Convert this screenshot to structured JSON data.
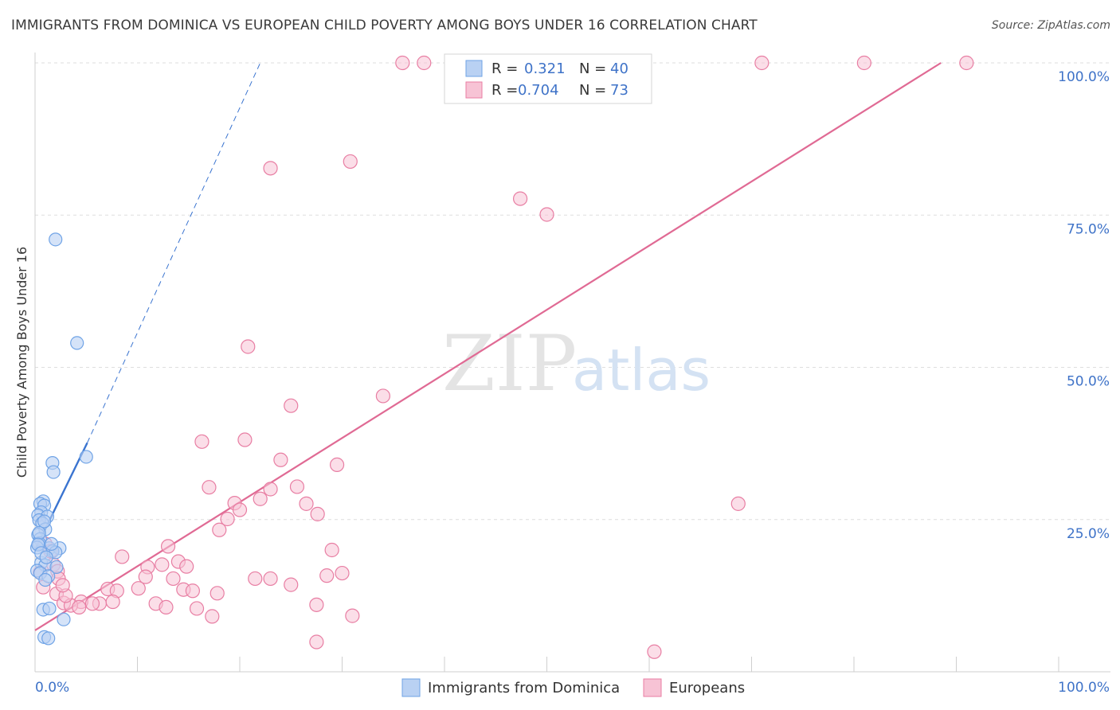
{
  "title": "IMMIGRANTS FROM DOMINICA VS EUROPEAN CHILD POVERTY AMONG BOYS UNDER 16 CORRELATION CHART",
  "source": "Source: ZipAtlas.com",
  "watermark": {
    "zip": "ZIP",
    "atlas": "atlas"
  },
  "colors": {
    "blue": "#6fa3e6",
    "blue_fill": "#b9d1f3",
    "blue_line": "#3a74d0",
    "pink": "#e87ea3",
    "pink_fill": "#f7c3d5",
    "pink_line": "#e06a94",
    "axis_label": "#3f73c8"
  },
  "legend_stats": {
    "r_label": "R =",
    "n_label": "N =",
    "series1": {
      "r": "0.321",
      "n": "40"
    },
    "series2": {
      "r": "0.704",
      "n": "73"
    }
  },
  "chart_data": {
    "type": "scatter",
    "title": "IMMIGRANTS FROM DOMINICA VS EUROPEAN CHILD POVERTY AMONG BOYS UNDER 16 CORRELATION CHART",
    "xlabel": "",
    "ylabel": "Child Poverty Among Boys Under 16",
    "xlim": [
      0,
      100
    ],
    "ylim": [
      0,
      100
    ],
    "x_tick_labels": [
      "0.0%",
      "100.0%"
    ],
    "y_tick_labels": [
      "25.0%",
      "50.0%",
      "75.0%",
      "100.0%"
    ],
    "y_ticks": [
      25,
      50,
      75,
      100
    ],
    "grid": true,
    "legend": [
      "Immigrants from Dominica",
      "Europeans"
    ],
    "series": [
      {
        "name": "Immigrants from Dominica",
        "points": [
          [
            2.0,
            71
          ],
          [
            4.1,
            54
          ],
          [
            5.0,
            35.3
          ],
          [
            1.7,
            34.3
          ],
          [
            1.8,
            32.8
          ],
          [
            0.8,
            28
          ],
          [
            0.5,
            27.6
          ],
          [
            0.9,
            27.3
          ],
          [
            0.6,
            26.2
          ],
          [
            0.3,
            25.7
          ],
          [
            1.2,
            25.5
          ],
          [
            0.4,
            24.9
          ],
          [
            0.7,
            24.4
          ],
          [
            1.0,
            23.4
          ],
          [
            0.3,
            22.5
          ],
          [
            0.5,
            21.8
          ],
          [
            0.4,
            21.1
          ],
          [
            0.2,
            20.4
          ],
          [
            1.4,
            20.3
          ],
          [
            2.4,
            20.3
          ],
          [
            1.7,
            19.8
          ],
          [
            2.0,
            19.6
          ],
          [
            0.6,
            17.9
          ],
          [
            1.0,
            17.5
          ],
          [
            2.1,
            17.2
          ],
          [
            0.2,
            16.6
          ],
          [
            0.5,
            16.2
          ],
          [
            1.3,
            15.7
          ],
          [
            1.0,
            15.1
          ],
          [
            0.8,
            10.2
          ],
          [
            1.4,
            10.4
          ],
          [
            2.8,
            8.6
          ],
          [
            0.9,
            5.7
          ],
          [
            1.3,
            5.5
          ],
          [
            0.4,
            22.8
          ],
          [
            0.9,
            24.7
          ],
          [
            1.6,
            21.0
          ],
          [
            0.3,
            20.9
          ],
          [
            0.6,
            19.5
          ],
          [
            1.1,
            18.8
          ]
        ],
        "trend": {
          "x1": 0,
          "y1": 20,
          "x2": 5.1,
          "y2": 37.6
        },
        "trend_dashed": {
          "x1": 5.1,
          "y1": 37.6,
          "x2": 22.0,
          "y2": 100
        }
      },
      {
        "name": "Europeans",
        "points": [
          [
            35.9,
            100
          ],
          [
            38.0,
            100
          ],
          [
            53.1,
            100
          ],
          [
            71.0,
            100
          ],
          [
            81.0,
            100
          ],
          [
            91.0,
            100
          ],
          [
            23.0,
            82.7
          ],
          [
            30.8,
            83.8
          ],
          [
            47.4,
            77.7
          ],
          [
            50.0,
            75.1
          ],
          [
            20.8,
            53.4
          ],
          [
            34.0,
            45.3
          ],
          [
            25.0,
            43.7
          ],
          [
            16.3,
            37.8
          ],
          [
            20.5,
            38.1
          ],
          [
            24.0,
            34.8
          ],
          [
            29.5,
            34.0
          ],
          [
            17.0,
            30.3
          ],
          [
            23.0,
            30.0
          ],
          [
            25.6,
            30.4
          ],
          [
            22.0,
            28.4
          ],
          [
            19.5,
            27.7
          ],
          [
            26.5,
            27.6
          ],
          [
            27.6,
            25.9
          ],
          [
            18.8,
            25.1
          ],
          [
            20.0,
            26.6
          ],
          [
            18.0,
            23.3
          ],
          [
            13.0,
            20.6
          ],
          [
            29.0,
            20.0
          ],
          [
            8.5,
            18.9
          ],
          [
            14.0,
            18.1
          ],
          [
            12.4,
            17.6
          ],
          [
            11.0,
            17.2
          ],
          [
            14.8,
            17.3
          ],
          [
            1.8,
            17.6
          ],
          [
            2.2,
            16.5
          ],
          [
            0.5,
            16.3
          ],
          [
            2.3,
            15.3
          ],
          [
            10.8,
            15.6
          ],
          [
            13.5,
            15.3
          ],
          [
            21.5,
            15.3
          ],
          [
            23.0,
            15.3
          ],
          [
            28.5,
            15.8
          ],
          [
            30.0,
            16.2
          ],
          [
            25.0,
            14.3
          ],
          [
            7.1,
            13.6
          ],
          [
            8.0,
            13.3
          ],
          [
            10.1,
            13.7
          ],
          [
            14.5,
            13.5
          ],
          [
            15.4,
            13.3
          ],
          [
            17.8,
            12.9
          ],
          [
            2.1,
            12.8
          ],
          [
            4.5,
            11.5
          ],
          [
            6.3,
            11.2
          ],
          [
            7.6,
            11.5
          ],
          [
            2.8,
            11.3
          ],
          [
            5.6,
            11.2
          ],
          [
            3.5,
            10.9
          ],
          [
            4.3,
            10.6
          ],
          [
            11.8,
            11.2
          ],
          [
            12.8,
            10.6
          ],
          [
            15.8,
            10.4
          ],
          [
            27.5,
            11.0
          ],
          [
            31.0,
            9.2
          ],
          [
            17.3,
            9.1
          ],
          [
            27.5,
            4.9
          ],
          [
            60.5,
            3.3
          ],
          [
            68.7,
            27.6
          ],
          [
            1.0,
            21.0
          ],
          [
            1.5,
            19.8
          ],
          [
            3.0,
            12.5
          ],
          [
            0.8,
            13.9
          ],
          [
            2.7,
            14.2
          ]
        ],
        "trend": {
          "x1": 0,
          "y1": 6.8,
          "x2": 88.5,
          "y2": 100
        }
      }
    ]
  }
}
